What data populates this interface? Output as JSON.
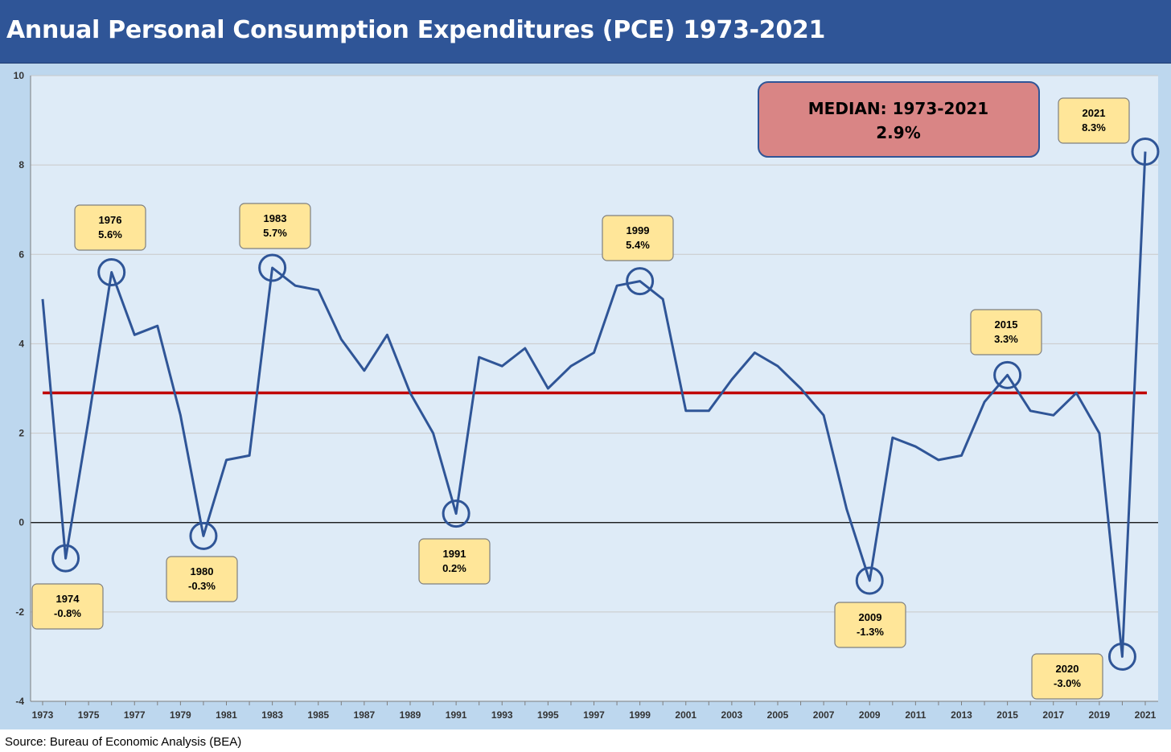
{
  "header": {
    "title": "Annual Personal Consumption Expenditures (PCE) 1973-2021"
  },
  "footer": {
    "source": "Source: Bureau of Economic Analysis (BEA)"
  },
  "colors": {
    "title_bar": "#2f5597",
    "frame": "#bdd7ee",
    "plot_bg": "#deebf7",
    "line": "#2f5597",
    "median_line": "#c00000",
    "callout_fill": "#ffe699",
    "median_box_fill": "#d98585"
  },
  "chart_data": {
    "type": "line",
    "title": "Annual Personal Consumption Expenditures (PCE) 1973-2021",
    "xlabel": "",
    "ylabel": "",
    "xlim": [
      1973,
      2021
    ],
    "ylim": [
      -4,
      10
    ],
    "yticks": [
      -4,
      -2,
      0,
      2,
      4,
      6,
      8,
      10
    ],
    "xticks": [
      1973,
      1975,
      1977,
      1979,
      1981,
      1983,
      1985,
      1987,
      1989,
      1991,
      1993,
      1995,
      1997,
      1999,
      2001,
      2003,
      2005,
      2007,
      2009,
      2011,
      2013,
      2015,
      2017,
      2019,
      2021
    ],
    "grid": true,
    "legend": "none",
    "series": [
      {
        "x": [
          1973,
          1974,
          1975,
          1976,
          1977,
          1978,
          1979,
          1980,
          1981,
          1982,
          1983,
          1984,
          1985,
          1986,
          1987,
          1988,
          1989,
          1990,
          1991,
          1992,
          1993,
          1994,
          1995,
          1996,
          1997,
          1998,
          1999,
          2000,
          2001,
          2002,
          2003,
          2004,
          2005,
          2006,
          2007,
          2008,
          2009,
          2010,
          2011,
          2012,
          2013,
          2014,
          2015,
          2016,
          2017,
          2018,
          2019,
          2020,
          2021
        ],
        "values": [
          5.0,
          -0.8,
          2.3,
          5.6,
          4.2,
          4.4,
          2.4,
          -0.3,
          1.4,
          1.5,
          5.7,
          5.3,
          5.2,
          4.1,
          3.4,
          4.2,
          2.9,
          2.0,
          0.2,
          3.7,
          3.5,
          3.9,
          3.0,
          3.5,
          3.8,
          5.3,
          5.4,
          5.0,
          2.5,
          2.5,
          3.2,
          3.8,
          3.5,
          3.0,
          2.4,
          0.3,
          -1.3,
          1.9,
          1.7,
          1.4,
          1.5,
          2.7,
          3.3,
          2.5,
          2.4,
          2.9,
          2.0,
          -3.0,
          8.3
        ]
      }
    ],
    "median": {
      "value": 2.9,
      "label": "MEDIAN: 1973-2021",
      "value_label": "2.9%"
    },
    "annotations": [
      {
        "year": 1974,
        "year_label": "1974",
        "value_label": "-0.8%",
        "value": -0.8,
        "position": "below"
      },
      {
        "year": 1976,
        "year_label": "1976",
        "value_label": "5.6%",
        "value": 5.6,
        "position": "above"
      },
      {
        "year": 1980,
        "year_label": "1980",
        "value_label": "-0.3%",
        "value": -0.3,
        "position": "below"
      },
      {
        "year": 1983,
        "year_label": "1983",
        "value_label": "5.7%",
        "value": 5.7,
        "position": "above"
      },
      {
        "year": 1991,
        "year_label": "1991",
        "value_label": "0.2%",
        "value": 0.2,
        "position": "below"
      },
      {
        "year": 1999,
        "year_label": "1999",
        "value_label": "5.4%",
        "value": 5.4,
        "position": "above"
      },
      {
        "year": 2009,
        "year_label": "2009",
        "value_label": "-1.3%",
        "value": -1.3,
        "position": "below"
      },
      {
        "year": 2015,
        "year_label": "2015",
        "value_label": "3.3%",
        "value": 3.3,
        "position": "above"
      },
      {
        "year": 2020,
        "year_label": "2020",
        "value_label": "-3.0%",
        "value": -3.0,
        "position": "below"
      },
      {
        "year": 2021,
        "year_label": "2021",
        "value_label": "8.3%",
        "value": 8.3,
        "position": "above"
      }
    ]
  }
}
